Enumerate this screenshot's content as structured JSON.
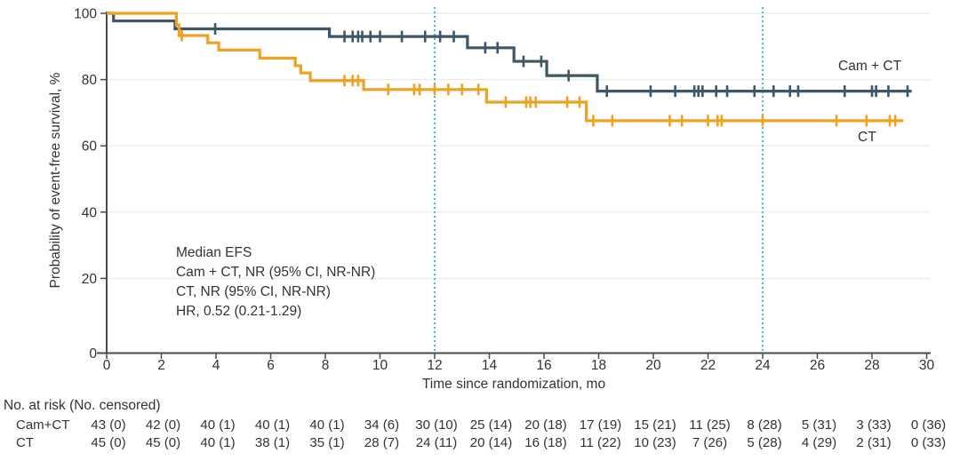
{
  "chart_data": {
    "type": "line",
    "subtype": "kaplan-meier-step",
    "title": "",
    "xlabel": "Time since randomization, mo",
    "ylabel": "Probability of event-free survival, %",
    "xlim": [
      0,
      30
    ],
    "ylim": [
      0,
      100
    ],
    "x_ticks": [
      0,
      2,
      4,
      6,
      8,
      10,
      12,
      14,
      16,
      18,
      20,
      22,
      24,
      26,
      28,
      30
    ],
    "y_ticks": [
      0,
      20,
      40,
      60,
      80,
      100
    ],
    "grid_y": [
      20,
      40,
      60,
      80,
      100
    ],
    "grid_color": "#eaeaea",
    "axis_color": "#4a4a4a",
    "reference_lines_x": [
      12,
      24
    ],
    "reference_line_color": "#3fb9e8",
    "annotation_lines": [
      "Median EFS",
      "Cam + CT, NR (95% CI, NR-NR)",
      "CT, NR (95% CI, NR-NR)",
      "HR, 0.52 (0.21-1.29)"
    ],
    "series": [
      {
        "name": "Cam + CT",
        "color": "#3e5666",
        "steps": [
          [
            0,
            100
          ],
          [
            0.25,
            100
          ],
          [
            0.25,
            97.7
          ],
          [
            2.5,
            97.7
          ],
          [
            2.5,
            95.3
          ],
          [
            8.15,
            95.3
          ],
          [
            8.15,
            93.0
          ],
          [
            13.2,
            93.0
          ],
          [
            13.2,
            89.6
          ],
          [
            14.9,
            89.6
          ],
          [
            14.9,
            85.5
          ],
          [
            16.1,
            85.5
          ],
          [
            16.1,
            81.2
          ],
          [
            17.95,
            81.2
          ],
          [
            17.95,
            76.5
          ],
          [
            29.45,
            76.5
          ]
        ],
        "censor_marks": [
          [
            3.97,
            95.3
          ],
          [
            8.7,
            93.0
          ],
          [
            9.0,
            93.0
          ],
          [
            9.2,
            93.0
          ],
          [
            9.35,
            93.0
          ],
          [
            9.65,
            93.0
          ],
          [
            10.0,
            93.0
          ],
          [
            10.8,
            93.0
          ],
          [
            11.65,
            93.0
          ],
          [
            12.2,
            93.0
          ],
          [
            12.7,
            93.0
          ],
          [
            13.85,
            89.6
          ],
          [
            14.3,
            89.6
          ],
          [
            15.25,
            85.5
          ],
          [
            15.9,
            85.5
          ],
          [
            16.9,
            81.2
          ],
          [
            18.3,
            76.5
          ],
          [
            19.9,
            76.5
          ],
          [
            20.8,
            76.5
          ],
          [
            21.5,
            76.5
          ],
          [
            21.65,
            76.5
          ],
          [
            21.8,
            76.5
          ],
          [
            22.3,
            76.5
          ],
          [
            22.7,
            76.5
          ],
          [
            23.7,
            76.5
          ],
          [
            24.4,
            76.5
          ],
          [
            25.0,
            76.5
          ],
          [
            25.3,
            76.5
          ],
          [
            27.0,
            76.5
          ],
          [
            28.0,
            76.5
          ],
          [
            28.15,
            76.5
          ],
          [
            28.6,
            76.5
          ],
          [
            29.3,
            76.5
          ]
        ]
      },
      {
        "name": "CT",
        "color": "#efa121",
        "steps": [
          [
            0,
            100
          ],
          [
            2.55,
            100
          ],
          [
            2.55,
            96.5
          ],
          [
            2.65,
            96.5
          ],
          [
            2.65,
            93.3
          ],
          [
            3.7,
            93.3
          ],
          [
            3.7,
            91.1
          ],
          [
            4.1,
            91.1
          ],
          [
            4.1,
            88.9
          ],
          [
            5.6,
            88.9
          ],
          [
            5.6,
            86.5
          ],
          [
            6.9,
            86.5
          ],
          [
            6.9,
            84.2
          ],
          [
            7.1,
            84.2
          ],
          [
            7.1,
            82.0
          ],
          [
            7.45,
            82.0
          ],
          [
            7.45,
            79.7
          ],
          [
            9.4,
            79.7
          ],
          [
            9.4,
            77.0
          ],
          [
            13.9,
            77.0
          ],
          [
            13.9,
            73.2
          ],
          [
            17.55,
            73.2
          ],
          [
            17.55,
            67.6
          ],
          [
            29.15,
            67.6
          ]
        ],
        "censor_marks": [
          [
            2.75,
            93.3
          ],
          [
            8.7,
            79.7
          ],
          [
            9.0,
            79.7
          ],
          [
            9.2,
            79.7
          ],
          [
            10.3,
            77.0
          ],
          [
            11.25,
            77.0
          ],
          [
            11.45,
            77.0
          ],
          [
            12.0,
            77.0
          ],
          [
            12.5,
            77.0
          ],
          [
            13.0,
            77.0
          ],
          [
            13.6,
            77.0
          ],
          [
            14.6,
            73.2
          ],
          [
            15.35,
            73.2
          ],
          [
            15.5,
            73.2
          ],
          [
            15.7,
            73.2
          ],
          [
            16.85,
            73.2
          ],
          [
            17.3,
            73.2
          ],
          [
            17.8,
            67.6
          ],
          [
            18.5,
            67.6
          ],
          [
            20.6,
            67.6
          ],
          [
            21.05,
            67.6
          ],
          [
            22.0,
            67.6
          ],
          [
            22.35,
            67.6
          ],
          [
            22.5,
            67.6
          ],
          [
            24.0,
            67.6
          ],
          [
            26.7,
            67.6
          ],
          [
            27.8,
            67.6
          ],
          [
            28.65,
            67.6
          ],
          [
            28.85,
            67.6
          ]
        ]
      }
    ]
  },
  "risk_table": {
    "title": "No. at risk (No. censored)",
    "time_points": [
      0,
      2,
      4,
      6,
      8,
      10,
      12,
      14,
      16,
      18,
      20,
      22,
      24,
      26,
      28,
      30
    ],
    "rows": [
      {
        "label": "Cam+CT",
        "values": [
          "43 (0)",
          "42 (0)",
          "40 (1)",
          "40 (1)",
          "40 (1)",
          "34 (6)",
          "30 (10)",
          "25 (14)",
          "20 (18)",
          "17 (19)",
          "15 (21)",
          "11 (25)",
          "8 (28)",
          "5 (31)",
          "3 (33)",
          "0 (36)"
        ]
      },
      {
        "label": "CT",
        "values": [
          "45 (0)",
          "45 (0)",
          "40 (1)",
          "38 (1)",
          "35 (1)",
          "28 (7)",
          "24 (11)",
          "20 (14)",
          "16 (18)",
          "11 (22)",
          "10 (23)",
          "7 (26)",
          "5 (28)",
          "4 (29)",
          "2 (31)",
          "0 (33)"
        ]
      }
    ]
  }
}
